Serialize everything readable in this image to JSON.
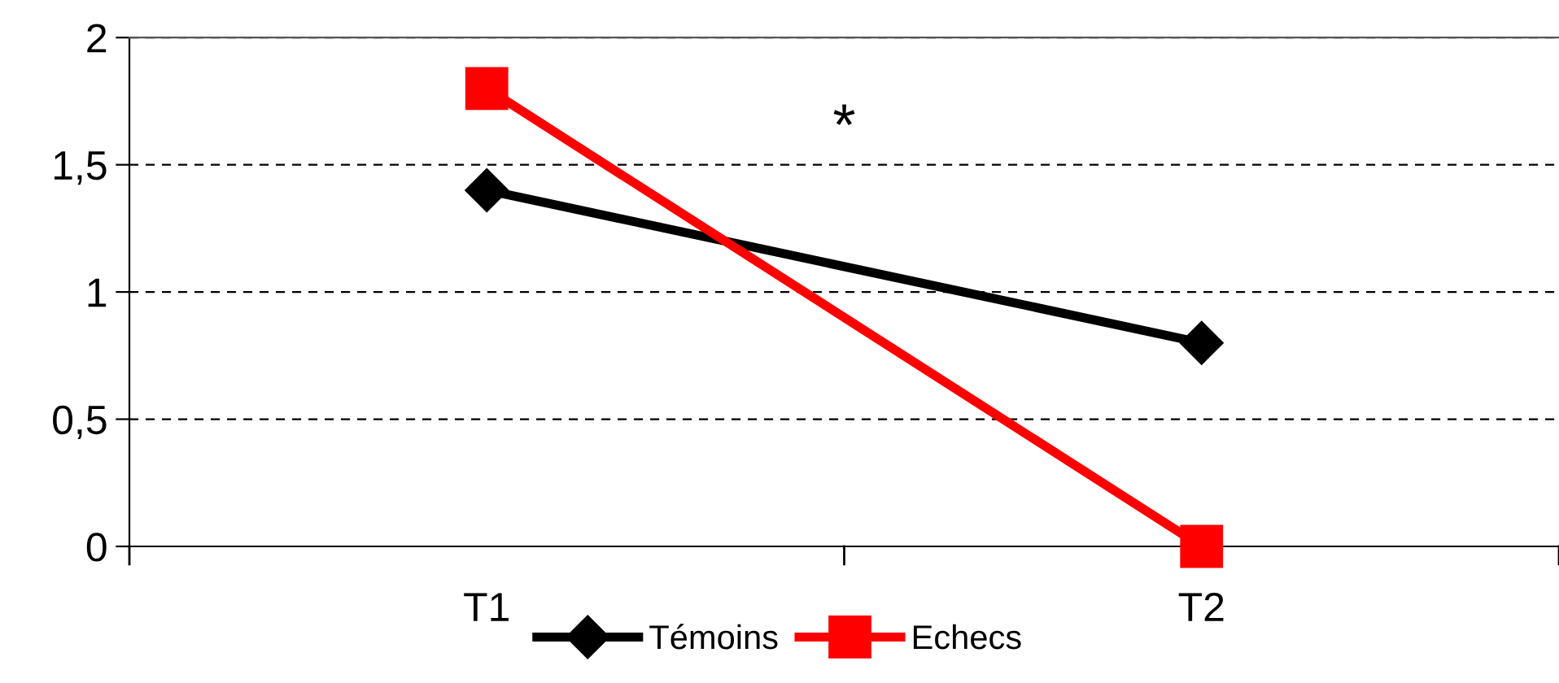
{
  "chart_data": {
    "type": "line",
    "categories": [
      "T1",
      "T2"
    ],
    "series": [
      {
        "name": "Témoins",
        "color": "#000000",
        "values": [
          1.4,
          0.8
        ],
        "marker": "diamond"
      },
      {
        "name": "Echecs",
        "color": "#ff0000",
        "values": [
          1.8,
          0.0
        ],
        "marker": "square"
      }
    ],
    "ylim": [
      0,
      2
    ],
    "yticks": [
      {
        "value": 0,
        "label": "0"
      },
      {
        "value": 0.5,
        "label": "0,5"
      },
      {
        "value": 1,
        "label": "1"
      },
      {
        "value": 1.5,
        "label": "1,5"
      },
      {
        "value": 2,
        "label": "2"
      }
    ],
    "grid": "y",
    "legend": "bottom",
    "line_style": "solid",
    "annotations": [
      "*"
    ]
  }
}
